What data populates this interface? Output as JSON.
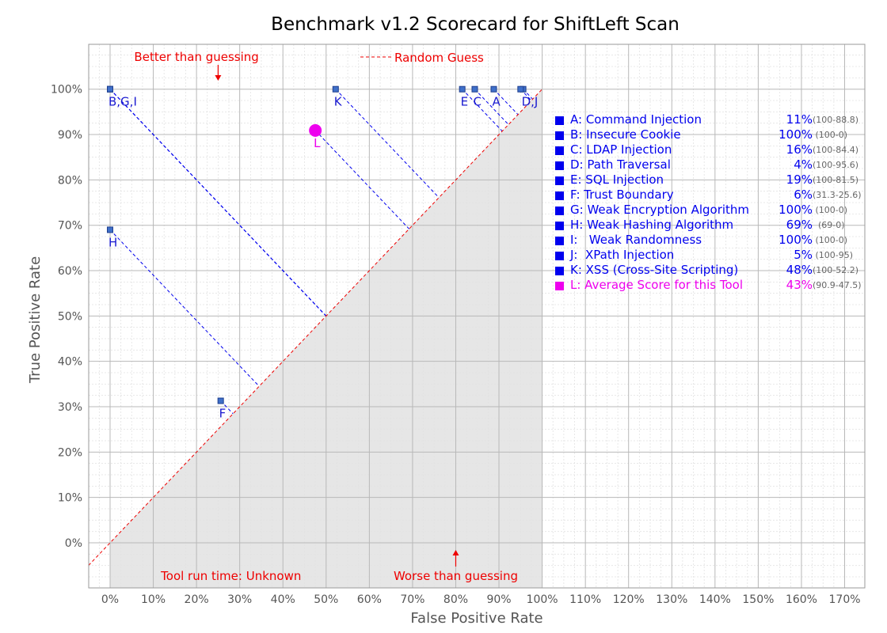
{
  "chart_data": {
    "type": "scatter",
    "title": "Benchmark v1.2 Scorecard for ShiftLeft Scan",
    "xlabel": "False Positive Rate",
    "ylabel": "True Positive Rate",
    "xlim": [
      -5,
      172
    ],
    "ylim": [
      -10,
      110
    ],
    "x_ticks": [
      "0%",
      "10%",
      "20%",
      "30%",
      "40%",
      "50%",
      "60%",
      "70%",
      "80%",
      "90%",
      "100%",
      "110%",
      "120%",
      "130%",
      "140%",
      "150%",
      "160%",
      "170%"
    ],
    "y_ticks": [
      "0%",
      "10%",
      "20%",
      "30%",
      "40%",
      "50%",
      "60%",
      "70%",
      "80%",
      "90%",
      "100%"
    ],
    "grid": true,
    "shaded_region": "below diagonal",
    "random_guess_label": "Random Guess",
    "annotations": {
      "better": "Better than guessing",
      "worse": "Worse than guessing",
      "runtime": "Tool run time: Unknown"
    },
    "points": [
      {
        "label": "A",
        "x": 88.8,
        "y": 100
      },
      {
        "label": "B",
        "x": 0,
        "y": 100
      },
      {
        "label": "C",
        "x": 84.4,
        "y": 100
      },
      {
        "label": "D",
        "x": 95.6,
        "y": 100
      },
      {
        "label": "E",
        "x": 81.5,
        "y": 100
      },
      {
        "label": "F",
        "x": 25.6,
        "y": 31.3
      },
      {
        "label": "G",
        "x": 0,
        "y": 100
      },
      {
        "label": "H",
        "x": 0,
        "y": 69
      },
      {
        "label": "I",
        "x": 0,
        "y": 100
      },
      {
        "label": "J",
        "x": 95,
        "y": 100
      },
      {
        "label": "K",
        "x": 52.2,
        "y": 100
      },
      {
        "label": "L",
        "x": 47.5,
        "y": 90.9
      }
    ],
    "point_labels": [
      {
        "text": "B,G,I",
        "x": 0,
        "y": 100
      },
      {
        "text": "K",
        "x": 52.2,
        "y": 100
      },
      {
        "text": "E",
        "x": 81.5,
        "y": 100
      },
      {
        "text": "C",
        "x": 84.4,
        "y": 100
      },
      {
        "text": "A",
        "x": 88.8,
        "y": 100
      },
      {
        "text": "D,J",
        "x": 95.6,
        "y": 100
      },
      {
        "text": "H",
        "x": 0,
        "y": 69
      },
      {
        "text": "F",
        "x": 25.6,
        "y": 31.3
      },
      {
        "text": "L",
        "x": 47.5,
        "y": 90.9
      }
    ],
    "legend": [
      {
        "key": "A",
        "label": "A: Command Injection",
        "score": "11%",
        "range": "(100-88.8)",
        "color": "#0000ee"
      },
      {
        "key": "B",
        "label": "B: Insecure Cookie",
        "score": "100%",
        "range": " (100-0)",
        "color": "#0000ee"
      },
      {
        "key": "C",
        "label": "C: LDAP Injection",
        "score": "16%",
        "range": "(100-84.4)",
        "color": "#0000ee"
      },
      {
        "key": "D",
        "label": "D: Path Traversal",
        "score": "4%",
        "range": "(100-95.6)",
        "color": "#0000ee"
      },
      {
        "key": "E",
        "label": "E: SQL Injection",
        "score": "19%",
        "range": "(100-81.5)",
        "color": "#0000ee"
      },
      {
        "key": "F",
        "label": "F: Trust Boundary",
        "score": "6%",
        "range": "(31.3-25.6)",
        "color": "#0000ee"
      },
      {
        "key": "G",
        "label": "G: Weak Encryption Algorithm",
        "score": "100%",
        "range": " (100-0)",
        "color": "#0000ee"
      },
      {
        "key": "H",
        "label": "H: Weak Hashing Algorithm",
        "score": "69%",
        "range": "  (69-0)",
        "color": "#0000ee"
      },
      {
        "key": "I",
        "label": "I:   Weak Randomness",
        "score": "100%",
        "range": " (100-0)",
        "color": "#0000ee"
      },
      {
        "key": "J",
        "label": "J:  XPath Injection",
        "score": "5%",
        "range": " (100-95)",
        "color": "#0000ee"
      },
      {
        "key": "K",
        "label": "K: XSS (Cross-Site Scripting)",
        "score": "48%",
        "range": "(100-52.2)",
        "color": "#0000ee"
      },
      {
        "key": "L",
        "label": "L: Average Score for this Tool",
        "score": "43%",
        "range": "(90.9-47.5)",
        "color": "#ee00ee"
      }
    ],
    "colors": {
      "point": "#3f6fc8",
      "point_border": "#1f3f8f",
      "average": "#ee00ee",
      "projection": "#0000ee",
      "diagonal": "#ee0000",
      "annotation": "#ee0000",
      "shade": "#e6e6e6",
      "grid": "#b8b8b8"
    }
  }
}
